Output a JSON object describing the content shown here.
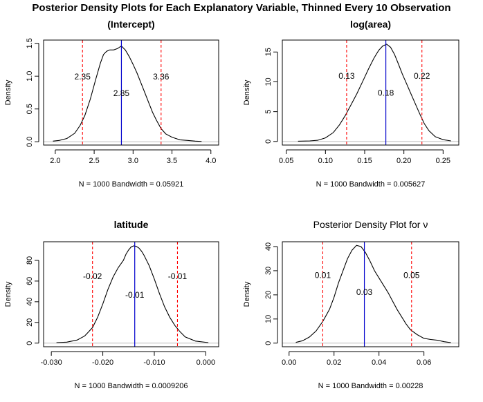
{
  "main_title": "Posterior Density Plots for Each Explanatory Variable, Thinned Every 10 Observation",
  "chart_data": [
    {
      "type": "line",
      "title": "(Intercept)",
      "title_bold": true,
      "ylabel": "Density",
      "xlabel": "N = 1000   Bandwidth = 0.05921",
      "xlim": [
        1.85,
        4.1
      ],
      "ylim": [
        -0.05,
        1.55
      ],
      "xticks": [
        2.0,
        2.5,
        3.0,
        3.5,
        4.0
      ],
      "xtick_labels": [
        "2.0",
        "2.5",
        "3.0",
        "3.5",
        "4.0"
      ],
      "yticks": [
        0.0,
        0.5,
        1.0,
        1.5
      ],
      "ytick_labels": [
        "0.0",
        "0.5",
        "1.0",
        "1.5"
      ],
      "density": {
        "x": [
          1.97,
          2.05,
          2.15,
          2.25,
          2.32,
          2.38,
          2.45,
          2.52,
          2.58,
          2.62,
          2.66,
          2.7,
          2.75,
          2.8,
          2.85,
          2.9,
          2.95,
          3.0,
          3.05,
          3.1,
          3.15,
          3.2,
          3.25,
          3.3,
          3.36,
          3.42,
          3.5,
          3.6,
          3.7,
          3.8,
          3.88
        ],
        "y": [
          0.01,
          0.02,
          0.05,
          0.13,
          0.25,
          0.4,
          0.65,
          0.95,
          1.2,
          1.33,
          1.38,
          1.4,
          1.4,
          1.42,
          1.46,
          1.4,
          1.3,
          1.18,
          1.05,
          0.9,
          0.75,
          0.6,
          0.45,
          0.33,
          0.2,
          0.12,
          0.07,
          0.03,
          0.02,
          0.01,
          0.005
        ]
      },
      "ci": [
        2.35,
        3.36
      ],
      "median": 2.85,
      "annotations": [
        {
          "text": "2.35",
          "x": 2.35,
          "y": 0.95
        },
        {
          "text": "2.85",
          "x": 2.85,
          "y": 0.7
        },
        {
          "text": "3.36",
          "x": 3.36,
          "y": 0.95
        }
      ]
    },
    {
      "type": "line",
      "title": "log(area)",
      "title_bold": true,
      "ylabel": "Density",
      "xlabel": "N = 1000   Bandwidth = 0.005627",
      "xlim": [
        0.045,
        0.27
      ],
      "ylim": [
        -0.6,
        17.0
      ],
      "xticks": [
        0.05,
        0.1,
        0.15,
        0.2,
        0.25
      ],
      "xtick_labels": [
        "0.05",
        "0.10",
        "0.15",
        "0.20",
        "0.25"
      ],
      "yticks": [
        0,
        5,
        10,
        15
      ],
      "ytick_labels": [
        "0",
        "5",
        "10",
        "15"
      ],
      "density": {
        "x": [
          0.065,
          0.08,
          0.09,
          0.1,
          0.11,
          0.118,
          0.125,
          0.132,
          0.14,
          0.148,
          0.155,
          0.162,
          0.168,
          0.173,
          0.178,
          0.183,
          0.188,
          0.193,
          0.198,
          0.203,
          0.208,
          0.214,
          0.22,
          0.226,
          0.232,
          0.24,
          0.25,
          0.26
        ],
        "y": [
          0.05,
          0.1,
          0.2,
          0.6,
          1.5,
          2.8,
          4.3,
          6.0,
          8.0,
          10.2,
          12.2,
          14.0,
          15.3,
          16.0,
          16.3,
          15.8,
          14.6,
          13.0,
          11.3,
          9.8,
          8.3,
          6.5,
          4.7,
          3.0,
          1.8,
          0.8,
          0.3,
          0.1
        ]
      },
      "ci": [
        0.127,
        0.223
      ],
      "median": 0.177,
      "annotations": [
        {
          "text": "0.13",
          "x": 0.127,
          "y": 10.5
        },
        {
          "text": "0.18",
          "x": 0.177,
          "y": 7.7
        },
        {
          "text": "0.22",
          "x": 0.223,
          "y": 10.5
        }
      ]
    },
    {
      "type": "line",
      "title": "latitude",
      "title_bold": true,
      "ylabel": "Density",
      "xlabel": "N = 1000   Bandwidth = 0.0009206",
      "xlim": [
        -0.0315,
        0.0025
      ],
      "ylim": [
        -3.5,
        98.0
      ],
      "xticks": [
        -0.03,
        -0.02,
        -0.01,
        0.0
      ],
      "xtick_labels": [
        "-0.030",
        "-0.020",
        "-0.010",
        "0.000"
      ],
      "yticks": [
        0,
        20,
        40,
        60,
        80
      ],
      "ytick_labels": [
        "0",
        "20",
        "40",
        "60",
        "80"
      ],
      "density": {
        "x": [
          -0.029,
          -0.027,
          -0.025,
          -0.0235,
          -0.022,
          -0.021,
          -0.02,
          -0.019,
          -0.018,
          -0.017,
          -0.016,
          -0.0155,
          -0.015,
          -0.0145,
          -0.014,
          -0.0135,
          -0.013,
          -0.0125,
          -0.012,
          -0.011,
          -0.01,
          -0.009,
          -0.008,
          -0.007,
          -0.006,
          -0.005,
          -0.004,
          -0.002,
          0.0005
        ],
        "y": [
          0.5,
          1,
          3,
          7,
          15,
          25,
          38,
          52,
          64,
          73,
          80,
          86,
          90,
          93,
          94,
          93.5,
          92,
          89,
          85,
          75,
          62,
          48,
          35,
          25,
          17,
          11,
          6,
          2,
          0.5
        ]
      },
      "ci": [
        -0.022,
        -0.0055
      ],
      "median": -0.0138,
      "annotations": [
        {
          "text": "-0.02",
          "x": -0.022,
          "y": 62
        },
        {
          "text": "-0.01",
          "x": -0.0138,
          "y": 44
        },
        {
          "text": "-0.01",
          "x": -0.0055,
          "y": 62
        }
      ]
    },
    {
      "type": "line",
      "title": "Posterior Density Plot for ν",
      "title_bold": false,
      "ylabel": "Density",
      "xlabel": "N = 1000   Bandwidth = 0.00228",
      "xlim": [
        -0.003,
        0.0755
      ],
      "ylim": [
        -1.5,
        42.0
      ],
      "xticks": [
        0.0,
        0.02,
        0.04,
        0.06
      ],
      "xtick_labels": [
        "0.00",
        "0.02",
        "0.04",
        "0.06"
      ],
      "yticks": [
        0,
        10,
        20,
        30,
        40
      ],
      "ytick_labels": [
        "0",
        "10",
        "20",
        "30",
        "40"
      ],
      "density": {
        "x": [
          0.003,
          0.006,
          0.009,
          0.012,
          0.015,
          0.018,
          0.02,
          0.022,
          0.024,
          0.026,
          0.028,
          0.03,
          0.032,
          0.034,
          0.036,
          0.038,
          0.04,
          0.042,
          0.044,
          0.046,
          0.048,
          0.05,
          0.052,
          0.054,
          0.057,
          0.06,
          0.063,
          0.066,
          0.069,
          0.072
        ],
        "y": [
          0.3,
          1,
          2.5,
          5,
          9,
          14,
          19,
          25,
          30,
          35,
          38.5,
          40.5,
          40,
          37.5,
          34,
          30,
          27,
          24,
          21,
          17.5,
          14,
          11,
          8,
          5.5,
          3.5,
          2,
          1.5,
          1.2,
          0.6,
          0.2
        ]
      },
      "ci": [
        0.015,
        0.0545
      ],
      "median": 0.0335,
      "annotations": [
        {
          "text": "0.01",
          "x": 0.015,
          "y": 27
        },
        {
          "text": "0.03",
          "x": 0.0335,
          "y": 20
        },
        {
          "text": "0.05",
          "x": 0.0545,
          "y": 27
        }
      ]
    }
  ]
}
